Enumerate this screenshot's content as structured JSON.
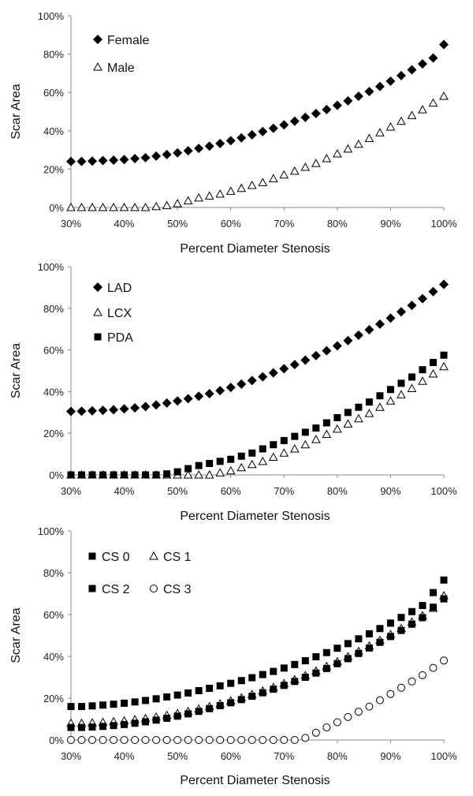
{
  "chart_data": [
    {
      "type": "scatter",
      "title": "",
      "xlabel": "Percent Diameter Stenosis",
      "ylabel": "Scar Area",
      "xlim": [
        30,
        100
      ],
      "ylim": [
        0,
        100
      ],
      "xticks": [
        "30%",
        "40%",
        "50%",
        "60%",
        "70%",
        "80%",
        "90%",
        "100%"
      ],
      "yticks": [
        "0%",
        "20%",
        "40%",
        "60%",
        "80%",
        "100%"
      ],
      "grid": false,
      "legend_position": "top-left",
      "series": [
        {
          "name": "Female",
          "marker": "diamond-filled",
          "x": [
            30,
            32,
            34,
            36,
            38,
            40,
            42,
            44,
            46,
            48,
            50,
            52,
            54,
            56,
            58,
            60,
            62,
            64,
            66,
            68,
            70,
            72,
            74,
            76,
            78,
            80,
            82,
            84,
            86,
            88,
            90,
            92,
            94,
            96,
            98,
            100
          ],
          "y": [
            24,
            24,
            24.2,
            24.5,
            24.7,
            25,
            25.5,
            26,
            26.8,
            27.6,
            28.5,
            29.6,
            30.8,
            32,
            33.4,
            34.8,
            36.3,
            37.9,
            39.6,
            41.3,
            43.1,
            45,
            47,
            49,
            51.1,
            53.3,
            55.6,
            58,
            60.5,
            63.1,
            65.9,
            68.8,
            71.8,
            74.9,
            78,
            85
          ]
        },
        {
          "name": "Male",
          "marker": "triangle-open",
          "x": [
            30,
            32,
            34,
            36,
            38,
            40,
            42,
            44,
            46,
            48,
            50,
            52,
            54,
            56,
            58,
            60,
            62,
            64,
            66,
            68,
            70,
            72,
            74,
            76,
            78,
            80,
            82,
            84,
            86,
            88,
            90,
            92,
            94,
            96,
            98,
            100
          ],
          "y": [
            0,
            0,
            0,
            0,
            0,
            0,
            0,
            0,
            0.5,
            1,
            2,
            3.5,
            5,
            6,
            7,
            8.5,
            10,
            11.5,
            13,
            15,
            17,
            19,
            21,
            23,
            25.5,
            28,
            30.5,
            33,
            36,
            39,
            42,
            45,
            48,
            51,
            54.5,
            58
          ]
        }
      ]
    },
    {
      "type": "scatter",
      "title": "",
      "xlabel": "Percent Diameter Stenosis",
      "ylabel": "Scar Area",
      "xlim": [
        30,
        100
      ],
      "ylim": [
        0,
        100
      ],
      "xticks": [
        "30%",
        "40%",
        "50%",
        "60%",
        "70%",
        "80%",
        "90%",
        "100%"
      ],
      "yticks": [
        "0%",
        "20%",
        "40%",
        "60%",
        "80%",
        "100%"
      ],
      "grid": false,
      "legend_position": "top-left",
      "series": [
        {
          "name": "LAD",
          "marker": "diamond-filled",
          "x": [
            30,
            32,
            34,
            36,
            38,
            40,
            42,
            44,
            46,
            48,
            50,
            52,
            54,
            56,
            58,
            60,
            62,
            64,
            66,
            68,
            70,
            72,
            74,
            76,
            78,
            80,
            82,
            84,
            86,
            88,
            90,
            92,
            94,
            96,
            98,
            100
          ],
          "y": [
            30.5,
            30.6,
            30.8,
            31,
            31.3,
            31.7,
            32.2,
            32.8,
            33.6,
            34.5,
            35.5,
            36.6,
            37.8,
            39,
            40.5,
            42,
            43.6,
            45.3,
            47.1,
            49,
            51,
            53,
            55.1,
            57.3,
            59.6,
            62,
            64.5,
            67.1,
            69.7,
            72.4,
            75.3,
            78.3,
            81.4,
            84.6,
            88,
            91.5
          ]
        },
        {
          "name": "LCX",
          "marker": "triangle-open",
          "x": [
            30,
            32,
            34,
            36,
            38,
            40,
            42,
            44,
            46,
            48,
            50,
            52,
            54,
            56,
            58,
            60,
            62,
            64,
            66,
            68,
            70,
            72,
            74,
            76,
            78,
            80,
            82,
            84,
            86,
            88,
            90,
            92,
            94,
            96,
            98,
            100
          ],
          "y": [
            0,
            0,
            0,
            0,
            0,
            0,
            0,
            0,
            0,
            0,
            0,
            0,
            0,
            0,
            1,
            2,
            3.5,
            5,
            6.5,
            8.5,
            10.5,
            12.5,
            14.5,
            17,
            19.5,
            22,
            24.5,
            27,
            29.5,
            32.5,
            35.5,
            38.5,
            41.5,
            45,
            48.5,
            52
          ]
        },
        {
          "name": "PDA",
          "marker": "square-filled",
          "x": [
            30,
            32,
            34,
            36,
            38,
            40,
            42,
            44,
            46,
            48,
            50,
            52,
            54,
            56,
            58,
            60,
            62,
            64,
            66,
            68,
            70,
            72,
            74,
            76,
            78,
            80,
            82,
            84,
            86,
            88,
            90,
            92,
            94,
            96,
            98,
            100
          ],
          "y": [
            0,
            0,
            0,
            0,
            0,
            0,
            0,
            0,
            0,
            0.5,
            1.5,
            3,
            4.5,
            5.5,
            6.5,
            7.5,
            9,
            10.5,
            12.5,
            14.5,
            16.5,
            18.5,
            20.5,
            22.5,
            25,
            27.5,
            30,
            32.5,
            35,
            38,
            41,
            44,
            47,
            50.5,
            54,
            57.5
          ]
        }
      ]
    },
    {
      "type": "scatter",
      "title": "",
      "xlabel": "Percent Diameter Stenosis",
      "ylabel": "Scar Area",
      "xlim": [
        30,
        100
      ],
      "ylim": [
        0,
        100
      ],
      "xticks": [
        "30%",
        "40%",
        "50%",
        "60%",
        "70%",
        "80%",
        "90%",
        "100%"
      ],
      "yticks": [
        "0%",
        "20%",
        "40%",
        "60%",
        "80%",
        "100%"
      ],
      "grid": false,
      "legend_position": "top-left",
      "series": [
        {
          "name": "CS 0",
          "marker": "square-filled",
          "x": [
            30,
            32,
            34,
            36,
            38,
            40,
            42,
            44,
            46,
            48,
            50,
            52,
            54,
            56,
            58,
            60,
            62,
            64,
            66,
            68,
            70,
            72,
            74,
            76,
            78,
            80,
            82,
            84,
            86,
            88,
            90,
            92,
            94,
            96,
            98,
            100
          ],
          "y": [
            16,
            16,
            16.3,
            16.7,
            17.1,
            17.6,
            18.2,
            18.9,
            19.7,
            20.6,
            21.5,
            22.5,
            23.6,
            24.7,
            25.9,
            27.1,
            28.4,
            29.8,
            31.3,
            32.8,
            34.4,
            36.1,
            37.9,
            39.8,
            41.8,
            43.9,
            46.1,
            48.4,
            50.8,
            53.3,
            55.9,
            58.6,
            61.4,
            64.3,
            70.5,
            76.5
          ]
        },
        {
          "name": "CS 1",
          "marker": "triangle-open",
          "x": [
            30,
            32,
            34,
            36,
            38,
            40,
            42,
            44,
            46,
            48,
            50,
            52,
            54,
            56,
            58,
            60,
            62,
            64,
            66,
            68,
            70,
            72,
            74,
            76,
            78,
            80,
            82,
            84,
            86,
            88,
            90,
            92,
            94,
            96,
            98,
            100
          ],
          "y": [
            8,
            8,
            8.2,
            8.5,
            8.8,
            9.2,
            9.7,
            10.3,
            11,
            11.8,
            12.7,
            13.7,
            14.8,
            16,
            17.3,
            18.7,
            20.2,
            21.8,
            23.5,
            25.2,
            27,
            28.9,
            30.9,
            33,
            35.2,
            37.5,
            39.9,
            42.4,
            45,
            47.7,
            50.5,
            53.4,
            56.4,
            59.5,
            63,
            69
          ]
        },
        {
          "name": "CS 2",
          "marker": "square-filled",
          "x": [
            30,
            32,
            34,
            36,
            38,
            40,
            42,
            44,
            46,
            48,
            50,
            52,
            54,
            56,
            58,
            60,
            62,
            64,
            66,
            68,
            70,
            72,
            74,
            76,
            78,
            80,
            82,
            84,
            86,
            88,
            90,
            92,
            94,
            96,
            98,
            100
          ],
          "y": [
            6,
            6,
            6.2,
            6.5,
            6.9,
            7.4,
            8,
            8.7,
            9.5,
            10.4,
            11.4,
            12.5,
            13.7,
            15,
            16.4,
            17.8,
            19.3,
            20.9,
            22.6,
            24.3,
            26.1,
            28,
            30,
            32,
            34.2,
            36.5,
            38.9,
            41.4,
            44,
            46.7,
            49.5,
            52.4,
            55.4,
            58.5,
            63.5,
            67.5
          ]
        },
        {
          "name": "CS 3",
          "marker": "circle-open",
          "x": [
            30,
            32,
            34,
            36,
            38,
            40,
            42,
            44,
            46,
            48,
            50,
            52,
            54,
            56,
            58,
            60,
            62,
            64,
            66,
            68,
            70,
            72,
            74,
            76,
            78,
            80,
            82,
            84,
            86,
            88,
            90,
            92,
            94,
            96,
            98,
            100
          ],
          "y": [
            0,
            0,
            0,
            0,
            0,
            0,
            0,
            0,
            0,
            0,
            0,
            0,
            0,
            0,
            0,
            0,
            0,
            0,
            0,
            0,
            0,
            0,
            1,
            3.5,
            6,
            8.5,
            11,
            13.5,
            16,
            19,
            22,
            25,
            28,
            31,
            34.5,
            38
          ]
        }
      ]
    }
  ]
}
